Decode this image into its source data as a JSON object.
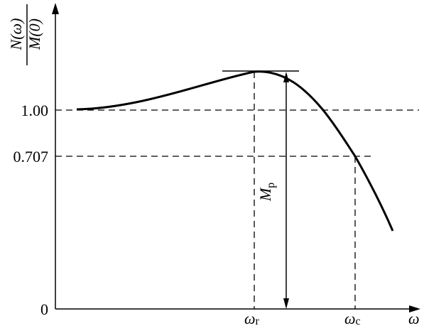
{
  "y_axis": {
    "label_numerator": "N(ω)",
    "label_denominator": "M(0)",
    "ticks": [
      "1.00",
      "0.707",
      "0"
    ]
  },
  "x_axis": {
    "label": "ω",
    "marks": [
      {
        "symbol": "ω",
        "subscript": "r"
      },
      {
        "symbol": "ω",
        "subscript": "c"
      }
    ]
  },
  "annotation": {
    "symbol": "M",
    "subscript": "p"
  }
}
